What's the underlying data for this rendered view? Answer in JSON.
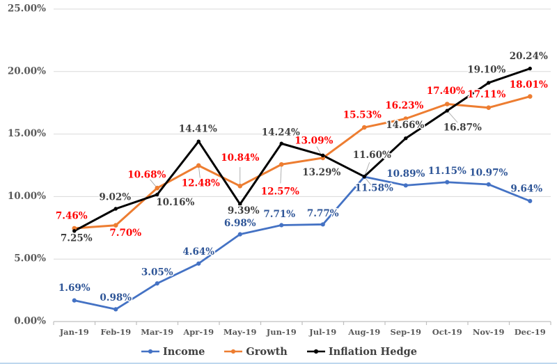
{
  "chart_data": {
    "type": "line",
    "title": "",
    "categories": [
      "Jan-19",
      "Feb-19",
      "Mar-19",
      "Apr-19",
      "May-19",
      "Jun-19",
      "Jul-19",
      "Aug-19",
      "Sep-19",
      "Oct-19",
      "Nov-19",
      "Dec-19"
    ],
    "series": [
      {
        "name": "Income",
        "color": "#4472C4",
        "label_color": "#2E5597",
        "values": [
          1.69,
          0.98,
          3.05,
          4.64,
          6.98,
          7.71,
          7.77,
          11.58,
          10.89,
          11.15,
          10.97,
          9.64
        ],
        "labels": [
          "1.69%",
          "0.98%",
          "3.05%",
          "4.64%",
          "6.98%",
          "7.71%",
          "7.77%",
          "11.58%",
          "10.89%",
          "11.15%",
          "10.97%",
          "9.64%"
        ],
        "label_offsets": [
          [
            0,
            -17
          ],
          [
            0,
            -16
          ],
          [
            0,
            -15
          ],
          [
            0,
            -16
          ],
          [
            0,
            -15
          ],
          [
            -3,
            -15
          ],
          [
            0,
            -15
          ],
          [
            14,
            17
          ],
          [
            0,
            -16
          ],
          [
            0,
            -15
          ],
          [
            0,
            -16
          ],
          [
            -5,
            -17
          ]
        ],
        "leader_points": [
          7
        ]
      },
      {
        "name": "Growth",
        "color": "#ED7D31",
        "label_color": "#FF0000",
        "values": [
          7.46,
          7.7,
          10.68,
          12.48,
          10.84,
          12.57,
          13.09,
          15.53,
          16.23,
          17.4,
          17.11,
          18.01
        ],
        "labels": [
          "7.46%",
          "7.70%",
          "10.68%",
          "12.48%",
          "10.84%",
          "12.57%",
          "13.09%",
          "15.53%",
          "16.23%",
          "17.40%",
          "17.11%",
          "18.01%"
        ],
        "label_offsets": [
          [
            -4,
            -17
          ],
          [
            14,
            12
          ],
          [
            -15,
            -18
          ],
          [
            3,
            26
          ],
          [
            0,
            -40
          ],
          [
            -2,
            40
          ],
          [
            -13,
            -24
          ],
          [
            -3,
            -17
          ],
          [
            -2,
            -18
          ],
          [
            -2,
            -18
          ],
          [
            -3,
            -18
          ],
          [
            -2,
            -16
          ]
        ],
        "leader_points": [
          2,
          3,
          4,
          5,
          6
        ]
      },
      {
        "name": "Inflation Hedge",
        "color": "#000000",
        "label_color": "#404040",
        "values": [
          7.25,
          9.02,
          10.16,
          14.41,
          9.39,
          14.24,
          13.29,
          11.6,
          14.66,
          16.87,
          19.1,
          20.24
        ],
        "labels": [
          "7.25%",
          "9.02%",
          "10.16%",
          "14.41%",
          "9.39%",
          "14.24%",
          "13.29%",
          "11.60%",
          "14.66%",
          "16.87%",
          "19.10%",
          "20.24%"
        ],
        "label_offsets": [
          [
            3,
            11
          ],
          [
            -1,
            -16
          ],
          [
            26,
            12
          ],
          [
            -1,
            -17
          ],
          [
            5,
            10
          ],
          [
            -1,
            -15
          ],
          [
            -2,
            25
          ],
          [
            11,
            -30
          ],
          [
            -1,
            -18
          ],
          [
            22,
            25
          ],
          [
            -3,
            -18
          ],
          [
            -2,
            -17
          ]
        ],
        "leader_points": [
          7,
          9
        ]
      }
    ],
    "y_axis": {
      "min": 0,
      "max": 25,
      "tick_values": [
        0,
        5,
        10,
        15,
        20,
        25
      ],
      "tick_labels": [
        "0.00%",
        "5.00%",
        "10.00%",
        "15.00%",
        "20.00%",
        "25.00%"
      ]
    },
    "grid": true,
    "legend_position": "bottom",
    "data_label_format": "0.00%"
  },
  "colors": {
    "grid": "#D9D9D9",
    "axis": "#BFBFBF",
    "axis_text": "#595959",
    "leader": "#A6A6A6",
    "page_border": "#BDD7EE",
    "background": "#FFFFFF"
  }
}
